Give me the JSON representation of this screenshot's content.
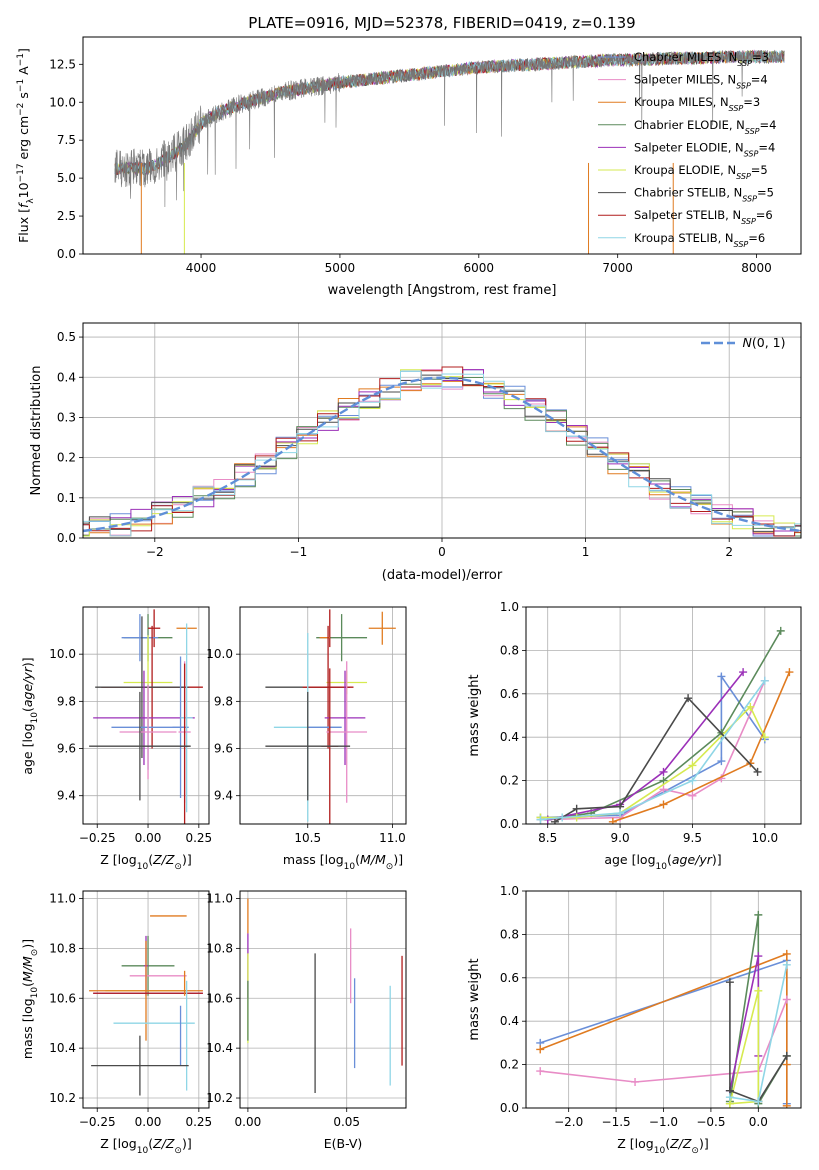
{
  "chart_data": [
    {
      "id": "spectrum",
      "type": "line",
      "title": "PLATE=0916, MJD=52378, FIBERID=0419, z=0.139",
      "xlabel": "wavelength [Angstrom, rest frame]",
      "ylabel": "Flux [fλ10⁻¹⁷ erg cm⁻² s⁻¹ A⁻¹]",
      "xlim": [
        3150,
        8320
      ],
      "ylim": [
        0,
        14.3
      ],
      "xticks": [
        4000,
        5000,
        6000,
        7000,
        8000
      ],
      "yticks": [
        0.0,
        2.5,
        5.0,
        7.5,
        10.0,
        12.5
      ],
      "legend_position": "right",
      "grid": false,
      "data_envelope": {
        "x": [
          3380,
          3500,
          3600,
          3700,
          3800,
          3900,
          4000,
          4100,
          4200,
          4400,
          4600,
          4800,
          5000,
          5200,
          5400,
          5600,
          5800,
          6000,
          6200,
          6400,
          6600,
          6800,
          7000,
          7200,
          7400,
          7600,
          7800,
          8000,
          8200
        ],
        "y": [
          5.6,
          5.7,
          5.6,
          6.0,
          6.6,
          7.3,
          8.6,
          9.2,
          9.6,
          10.2,
          10.7,
          11.0,
          11.3,
          11.5,
          11.7,
          11.9,
          12.1,
          12.3,
          12.4,
          12.5,
          12.6,
          12.7,
          12.8,
          12.8,
          12.9,
          12.9,
          13.0,
          13.0,
          13.0
        ]
      },
      "series": [
        {
          "name": "Chabrier MILES, N_SSP=3",
          "color": "#6a8fd8"
        },
        {
          "name": "Salpeter MILES, N_SSP=4",
          "color": "#e88cc6"
        },
        {
          "name": "Kroupa MILES, N_SSP=3",
          "color": "#e07b20"
        },
        {
          "name": "Chabrier ELODIE, N_SSP=4",
          "color": "#5b8a5b"
        },
        {
          "name": "Salpeter ELODIE, N_SSP=4",
          "color": "#9b30b8"
        },
        {
          "name": "Kroupa ELODIE, N_SSP=5",
          "color": "#d6ea50"
        },
        {
          "name": "Chabrier STELIB, N_SSP=5",
          "color": "#4a4a4a"
        },
        {
          "name": "Salpeter STELIB, N_SSP=6",
          "color": "#b01c1c"
        },
        {
          "name": "Kroupa STELIB, N_SSP=6",
          "color": "#8fd6e6"
        }
      ]
    },
    {
      "id": "residuals",
      "type": "line",
      "xlabel": "(data-model)/error",
      "ylabel": "Normed distribution",
      "xlim": [
        -2.5,
        2.5
      ],
      "ylim": [
        0,
        0.535
      ],
      "xticks": [
        -2,
        -1,
        0,
        1,
        2
      ],
      "yticks": [
        0.0,
        0.1,
        0.2,
        0.3,
        0.4,
        0.5
      ],
      "grid": true,
      "legend": "N(0,1)",
      "legend_position": "top-right",
      "gauss_color": "#5f8fd8"
    },
    {
      "id": "z-age",
      "type": "scatter",
      "xlabel": "Z [log10(Z/Z☉)]",
      "ylabel": "age  [log10(age/yr)]",
      "xlim": [
        -0.32,
        0.3
      ],
      "ylim": [
        9.28,
        10.2
      ],
      "xticks": [
        -0.25,
        0.0,
        0.25
      ],
      "yticks": [
        9.4,
        9.6,
        9.8,
        10.0
      ],
      "grid": true,
      "points": [
        {
          "x": 0.19,
          "y": 10.11,
          "xerr": 0.05,
          "yerr": 0.0,
          "color": "#e07b20"
        },
        {
          "x": 0.0,
          "y": 10.07,
          "xerr": 0.12,
          "yerr": 0.1,
          "color": "#5b8a5b"
        },
        {
          "x": 0.03,
          "y": 10.11,
          "xerr": 0.03,
          "yerr": 0.08,
          "color": "#b01c1c"
        },
        {
          "x": -0.04,
          "y": 10.07,
          "xerr": 0.09,
          "yerr": 0.1,
          "color": "#6a8fd8"
        },
        {
          "x": 0.0,
          "y": 9.88,
          "xerr": 0.12,
          "yerr": 0.2,
          "color": "#d6ea50"
        },
        {
          "x": 0.02,
          "y": 9.86,
          "xerr": 0.25,
          "yerr": 0.26,
          "color": "#b01c1c"
        },
        {
          "x": -0.03,
          "y": 9.86,
          "xerr": 0.23,
          "yerr": 0.3,
          "color": "#4a4a4a"
        },
        {
          "x": -0.02,
          "y": 9.73,
          "xerr": 0.25,
          "yerr": 0.2,
          "color": "#9b30b8"
        },
        {
          "x": 0.0,
          "y": 9.69,
          "xerr": 0.18,
          "yerr": 0.18,
          "color": "#6a8fd8"
        },
        {
          "x": 0.0,
          "y": 9.67,
          "xerr": 0.14,
          "yerr": 0.2,
          "color": "#e88cc6"
        },
        {
          "x": 0.16,
          "y": 9.69,
          "xerr": 0.04,
          "yerr": 0.3,
          "color": "#6a8fd8"
        },
        {
          "x": 0.19,
          "y": 9.73,
          "xerr": 0.03,
          "yerr": 0.4,
          "color": "#8fd6e6"
        },
        {
          "x": 0.18,
          "y": 9.67,
          "xerr": 0.03,
          "yerr": 0.3,
          "color": "#e88cc6"
        },
        {
          "x": 0.18,
          "y": 9.61,
          "xerr": 0.02,
          "yerr": 0.35,
          "color": "#b01c1c"
        },
        {
          "x": -0.04,
          "y": 9.61,
          "xerr": 0.25,
          "yerr": 0.23,
          "color": "#4a4a4a"
        }
      ]
    },
    {
      "id": "mass-age",
      "type": "scatter",
      "xlabel": "mass [log10(M/M☉)]",
      "ylabel": "",
      "xlim": [
        10.1,
        11.08
      ],
      "ylim": [
        9.28,
        10.2
      ],
      "xticks": [
        10.5,
        11.0
      ],
      "yticks": [
        9.4,
        9.6,
        9.8,
        10.0
      ],
      "grid": true,
      "points": [
        {
          "x": 10.94,
          "y": 10.11,
          "xerr": 0.08,
          "yerr": 0.07,
          "color": "#e07b20"
        },
        {
          "x": 10.7,
          "y": 10.07,
          "xerr": 0.15,
          "yerr": 0.1,
          "color": "#5b8a5b"
        },
        {
          "x": 10.63,
          "y": 10.11,
          "xerr": 0.0,
          "yerr": 0.08,
          "color": "#b01c1c"
        },
        {
          "x": 10.6,
          "y": 10.07,
          "xerr": 0.03,
          "yerr": 0.0,
          "color": "#e07b20"
        },
        {
          "x": 10.73,
          "y": 9.88,
          "xerr": 0.12,
          "yerr": 0.05,
          "color": "#d6ea50"
        },
        {
          "x": 10.5,
          "y": 9.86,
          "xerr": 0.25,
          "yerr": 0.0,
          "color": "#4a4a4a"
        },
        {
          "x": 10.62,
          "y": 9.86,
          "xerr": 0.15,
          "yerr": 0.26,
          "color": "#b01c1c"
        },
        {
          "x": 10.72,
          "y": 9.73,
          "xerr": 0.12,
          "yerr": 0.2,
          "color": "#9b30b8"
        },
        {
          "x": 10.5,
          "y": 9.69,
          "xerr": 0.2,
          "yerr": 0.4,
          "color": "#8fd6e6"
        },
        {
          "x": 10.6,
          "y": 9.69,
          "xerr": 0.1,
          "yerr": 0.0,
          "color": "#6a8fd8"
        },
        {
          "x": 10.73,
          "y": 9.67,
          "xerr": 0.12,
          "yerr": 0.3,
          "color": "#e88cc6"
        },
        {
          "x": 10.63,
          "y": 9.61,
          "xerr": 0.05,
          "yerr": 0.33,
          "color": "#b01c1c"
        },
        {
          "x": 10.5,
          "y": 9.61,
          "xerr": 0.25,
          "yerr": 0.23,
          "color": "#4a4a4a"
        }
      ]
    },
    {
      "id": "age-weight",
      "type": "line",
      "xlabel": "age  [log10(age/yr)]",
      "ylabel": "mass weight",
      "xlim": [
        8.35,
        10.25
      ],
      "ylim": [
        0,
        1.0
      ],
      "xticks": [
        8.5,
        9.0,
        9.5,
        10.0
      ],
      "yticks": [
        0.0,
        0.2,
        0.4,
        0.6,
        0.8,
        1.0
      ],
      "grid": true,
      "series": [
        {
          "color": "#6a8fd8",
          "x": [
            8.45,
            9.0,
            9.7,
            9.7,
            10.0
          ],
          "y": [
            0.03,
            0.04,
            0.29,
            0.68,
            0.39
          ]
        },
        {
          "color": "#e88cc6",
          "x": [
            8.45,
            9.0,
            9.3,
            9.5,
            9.7,
            10.0
          ],
          "y": [
            0.02,
            0.03,
            0.16,
            0.13,
            0.21,
            0.66
          ]
        },
        {
          "color": "#e07b20",
          "x": [
            8.95,
            9.3,
            9.9,
            10.17
          ],
          "y": [
            0.01,
            0.09,
            0.28,
            0.7
          ]
        },
        {
          "color": "#5b8a5b",
          "x": [
            8.5,
            8.8,
            9.3,
            9.7,
            10.11
          ],
          "y": [
            0.02,
            0.05,
            0.2,
            0.42,
            0.89
          ]
        },
        {
          "color": "#9b30b8",
          "x": [
            8.5,
            9.0,
            9.3,
            9.85
          ],
          "y": [
            0.02,
            0.09,
            0.24,
            0.7
          ]
        },
        {
          "color": "#d6ea50",
          "x": [
            8.45,
            8.7,
            9.0,
            9.5,
            9.9,
            10.0
          ],
          "y": [
            0.03,
            0.03,
            0.05,
            0.27,
            0.54,
            0.4
          ]
        },
        {
          "color": "#4a4a4a",
          "x": [
            8.55,
            8.7,
            9.0,
            9.47,
            9.95
          ],
          "y": [
            0.01,
            0.07,
            0.08,
            0.58,
            0.24
          ]
        },
        {
          "color": "#8fd6e6",
          "x": [
            8.45,
            8.6,
            9.0,
            9.5,
            10.0
          ],
          "y": [
            0.02,
            0.03,
            0.05,
            0.2,
            0.66
          ]
        }
      ]
    },
    {
      "id": "z-mass",
      "type": "scatter",
      "xlabel": "Z [log10(Z/Z☉)]",
      "ylabel": "mass [log10(M/M☉)]",
      "xlim": [
        -0.32,
        0.3
      ],
      "ylim": [
        10.16,
        11.03
      ],
      "xticks": [
        -0.25,
        0.0,
        0.25
      ],
      "yticks": [
        10.2,
        10.4,
        10.6,
        10.8,
        11.0
      ],
      "grid": true,
      "points": [
        {
          "x": 0.1,
          "y": 10.93,
          "xerr": 0.09,
          "yerr": 0.0,
          "color": "#e07b20"
        },
        {
          "x": 0.0,
          "y": 10.73,
          "xerr": 0.13,
          "yerr": 0.12,
          "color": "#5b8a5b"
        },
        {
          "x": -0.01,
          "y": 10.73,
          "xerr": 0.01,
          "yerr": 0.12,
          "color": "#9b30b8"
        },
        {
          "x": 0.05,
          "y": 10.69,
          "xerr": 0.14,
          "yerr": 0.0,
          "color": "#e88cc6"
        },
        {
          "x": -0.01,
          "y": 10.63,
          "xerr": 0.2,
          "yerr": 0.0,
          "color": "#d6ea50"
        },
        {
          "x": -0.01,
          "y": 10.63,
          "xerr": 0.28,
          "yerr": 0.2,
          "color": "#e07b20"
        },
        {
          "x": 0.0,
          "y": 10.62,
          "xerr": 0.27,
          "yerr": 0.0,
          "color": "#9b30b8"
        },
        {
          "x": 0.0,
          "y": 10.62,
          "xerr": 0.27,
          "yerr": 0.0,
          "color": "#b01c1c"
        },
        {
          "x": 0.03,
          "y": 10.5,
          "xerr": 0.2,
          "yerr": 0.0,
          "color": "#8fd6e6"
        },
        {
          "x": 0.16,
          "y": 10.45,
          "xerr": 0.0,
          "yerr": 0.12,
          "color": "#6a8fd8"
        },
        {
          "x": 0.19,
          "y": 10.45,
          "xerr": 0.0,
          "yerr": 0.22,
          "color": "#8fd6e6"
        },
        {
          "x": 0.18,
          "y": 10.66,
          "xerr": 0.0,
          "yerr": 0.05,
          "color": "#e07b20"
        },
        {
          "x": -0.04,
          "y": 10.33,
          "xerr": 0.24,
          "yerr": 0.12,
          "color": "#4a4a4a"
        }
      ]
    },
    {
      "id": "ebv-mass",
      "type": "scatter",
      "xlabel": "E(B-V)",
      "ylabel": "",
      "xlim": [
        -0.004,
        0.08
      ],
      "ylim": [
        10.16,
        11.03
      ],
      "xticks": [
        0.0,
        0.05
      ],
      "tick_labels": [
        "0.00",
        "0.05"
      ],
      "yticks": [
        10.2,
        10.4,
        10.6,
        10.8,
        11.0
      ],
      "grid": true,
      "points": [
        {
          "x": 0.0,
          "y": 10.93,
          "xerr": 0.0,
          "yerr": 0.07,
          "color": "#e07b20"
        },
        {
          "x": 0.0,
          "y": 10.73,
          "xerr": 0.0,
          "yerr": 0.13,
          "color": "#9b30b8"
        },
        {
          "x": 0.0,
          "y": 10.6,
          "xerr": 0.0,
          "yerr": 0.18,
          "color": "#d6ea50"
        },
        {
          "x": 0.0,
          "y": 10.55,
          "xerr": 0.0,
          "yerr": 0.12,
          "color": "#5b8a5b"
        },
        {
          "x": 0.034,
          "y": 10.5,
          "xerr": 0.0,
          "yerr": 0.28,
          "color": "#4a4a4a"
        },
        {
          "x": 0.052,
          "y": 10.73,
          "xerr": 0.0,
          "yerr": 0.15,
          "color": "#e88cc6"
        },
        {
          "x": 0.054,
          "y": 10.5,
          "xerr": 0.0,
          "yerr": 0.18,
          "color": "#6a8fd8"
        },
        {
          "x": 0.072,
          "y": 10.45,
          "xerr": 0.0,
          "yerr": 0.2,
          "color": "#8fd6e6"
        },
        {
          "x": 0.078,
          "y": 10.55,
          "xerr": 0.0,
          "yerr": 0.22,
          "color": "#b01c1c"
        }
      ]
    },
    {
      "id": "z-weight",
      "type": "line",
      "xlabel": "Z [log10(Z/Z☉)]",
      "ylabel": "mass weight",
      "xlim": [
        -2.45,
        0.45
      ],
      "ylim": [
        0,
        1.0
      ],
      "xticks": [
        -2.0,
        -1.5,
        -1.0,
        -0.5,
        0.0
      ],
      "yticks": [
        0.0,
        0.2,
        0.4,
        0.6,
        0.8,
        1.0
      ],
      "grid": true,
      "series": [
        {
          "color": "#6a8fd8",
          "x": [
            -2.3,
            0.3,
            0.3
          ],
          "y": [
            0.3,
            0.68,
            0.02
          ]
        },
        {
          "color": "#e07b20",
          "x": [
            -2.3,
            0.3,
            0.3,
            0.3
          ],
          "y": [
            0.27,
            0.71,
            0.2,
            0.01
          ]
        },
        {
          "color": "#e88cc6",
          "x": [
            -2.3,
            -1.3,
            0.0,
            0.3
          ],
          "y": [
            0.17,
            0.12,
            0.17,
            0.5
          ]
        },
        {
          "color": "#5b8a5b",
          "x": [
            -0.3,
            0.0,
            0.0,
            0.3
          ],
          "y": [
            0.03,
            0.89,
            0.02,
            0.24
          ]
        },
        {
          "color": "#9b30b8",
          "x": [
            -0.3,
            0.0,
            0.0
          ],
          "y": [
            0.08,
            0.7,
            0.24
          ]
        },
        {
          "color": "#d6ea50",
          "x": [
            -0.3,
            0.0,
            0.0,
            -0.3
          ],
          "y": [
            0.02,
            0.54,
            0.03,
            0.02
          ]
        },
        {
          "color": "#4a4a4a",
          "x": [
            -0.3,
            -0.3,
            0.0,
            0.3
          ],
          "y": [
            0.58,
            0.08,
            0.03,
            0.24
          ]
        },
        {
          "color": "#8fd6e6",
          "x": [
            -0.3,
            0.0,
            0.3
          ],
          "y": [
            0.05,
            0.03,
            0.66
          ]
        }
      ]
    }
  ]
}
